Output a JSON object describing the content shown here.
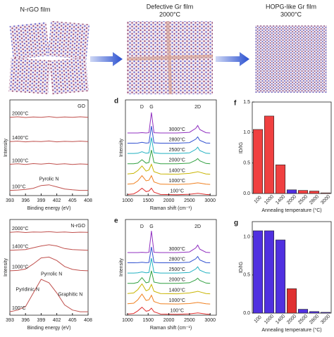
{
  "schematic": {
    "films": [
      {
        "label": "N-rGO film"
      },
      {
        "label": "Defective Gr film",
        "temperature": "2000°C"
      },
      {
        "label": "HOPG-like Gr film",
        "temperature": "3000°C"
      }
    ]
  },
  "chart_data": [
    {
      "type": "line",
      "title": "GO",
      "xlabel": "Binding energy (eV)",
      "ylabel": "Intensity",
      "x": [
        393,
        394.5,
        396,
        397.5,
        399,
        400.5,
        402,
        403.5,
        405,
        406.5,
        408
      ],
      "xlim": [
        393,
        408
      ],
      "xticks": [
        393,
        396,
        399,
        402,
        405,
        408
      ],
      "ylim": [
        0,
        5.5
      ],
      "series": [
        {
          "name": "100°C",
          "color": "#c0504d",
          "values": [
            0.3,
            0.32,
            0.35,
            0.42,
            0.58,
            0.62,
            0.5,
            0.38,
            0.33,
            0.3,
            0.3
          ]
        },
        {
          "name": "1000°C",
          "color": "#c0504d",
          "values": [
            1.8,
            1.83,
            1.79,
            1.84,
            1.81,
            1.85,
            1.8,
            1.83,
            1.79,
            1.82,
            1.8
          ]
        },
        {
          "name": "1400°C",
          "color": "#c0504d",
          "values": [
            3.1,
            3.13,
            3.09,
            3.12,
            3.1,
            3.14,
            3.09,
            3.12,
            3.1,
            3.13,
            3.1
          ]
        },
        {
          "name": "2000°C",
          "color": "#c0504d",
          "values": [
            4.5,
            4.53,
            4.49,
            4.52,
            4.5,
            4.54,
            4.49,
            4.52,
            4.5,
            4.53,
            4.5
          ]
        }
      ],
      "annotations": [
        {
          "text": "Pyrolic N",
          "x": 400.5,
          "y": 0.95,
          "color": "#2ca02c"
        }
      ]
    },
    {
      "type": "line",
      "panel": "d",
      "xlabel": "Raman shift (cm⁻¹)",
      "ylabel": "Intensity",
      "x": [
        1000,
        1150,
        1250,
        1350,
        1450,
        1520,
        1580,
        1640,
        1800,
        2200,
        2500,
        2650,
        2700,
        2750,
        2900,
        3000
      ],
      "xlim": [
        950,
        3150
      ],
      "xticks": [
        1000,
        1500,
        2000,
        2500,
        3000
      ],
      "ylim": [
        0,
        8.4
      ],
      "series": [
        {
          "name": "100°C",
          "color": "#e03030",
          "values": [
            0.1,
            0.15,
            0.35,
            0.65,
            0.35,
            0.4,
            0.65,
            0.3,
            0.1,
            0.08,
            0.12,
            0.18,
            0.2,
            0.18,
            0.1,
            0.08
          ]
        },
        {
          "name": "1000°C",
          "color": "#f08020",
          "values": [
            1.0,
            1.05,
            1.3,
            1.75,
            1.3,
            1.35,
            1.75,
            1.2,
            1.0,
            0.98,
            1.02,
            1.1,
            1.12,
            1.1,
            1.0,
            0.98
          ]
        },
        {
          "name": "1400°C",
          "color": "#c8b400",
          "values": [
            1.9,
            1.95,
            2.2,
            2.6,
            2.15,
            2.25,
            2.75,
            2.1,
            1.9,
            1.88,
            1.95,
            2.05,
            2.1,
            2.05,
            1.9,
            1.88
          ]
        },
        {
          "name": "2000°C",
          "color": "#30a040",
          "values": [
            2.8,
            2.8,
            2.85,
            3.15,
            2.85,
            2.9,
            4.0,
            2.9,
            2.8,
            2.8,
            2.85,
            3.1,
            3.25,
            3.05,
            2.82,
            2.8
          ]
        },
        {
          "name": "2500°C",
          "color": "#20b0c0",
          "values": [
            3.7,
            3.7,
            3.72,
            3.85,
            3.72,
            3.75,
            5.1,
            3.75,
            3.7,
            3.7,
            3.75,
            4.05,
            4.25,
            3.95,
            3.72,
            3.7
          ]
        },
        {
          "name": "2800°C",
          "color": "#3050d0",
          "values": [
            4.6,
            4.6,
            4.61,
            4.68,
            4.61,
            4.63,
            6.1,
            4.63,
            4.6,
            4.6,
            4.65,
            4.95,
            5.15,
            4.85,
            4.62,
            4.6
          ]
        },
        {
          "name": "3000°C",
          "color": "#9030c0",
          "values": [
            5.5,
            5.5,
            5.5,
            5.53,
            5.5,
            5.52,
            7.3,
            5.52,
            5.5,
            5.5,
            5.55,
            5.9,
            6.15,
            5.8,
            5.52,
            5.5
          ]
        }
      ],
      "annotations": [
        {
          "text": "D",
          "x": 1350
        },
        {
          "text": "G",
          "x": 1580
        },
        {
          "text": "2D",
          "x": 2700
        }
      ]
    },
    {
      "type": "bar",
      "panel": "f",
      "xlabel": "Annealing temperature (°C)",
      "ylabel": "ID/IG",
      "categories": [
        "100",
        "1000",
        "1400",
        "2000",
        "2500",
        "2800",
        "3000"
      ],
      "values": [
        1.05,
        1.27,
        0.47,
        0.06,
        0.05,
        0.04,
        0.01
      ],
      "colors": [
        "#f04040",
        "#f04040",
        "#f04040",
        "#5030e0",
        "#f04040",
        "#f04040",
        "#f04040"
      ],
      "ylim": [
        0,
        1.5
      ],
      "yticks": [
        {
          "value": 0,
          "label": "0.0"
        },
        0.5,
        {
          "value": 1,
          "label": "1.0"
        },
        1.5
      ]
    },
    {
      "type": "line",
      "title": "N-rGO",
      "xlabel": "Binding energy (eV)",
      "ylabel": "Intensity",
      "x": [
        393,
        394.5,
        396,
        397.5,
        399,
        400.5,
        402,
        403.5,
        405,
        406.5,
        408
      ],
      "xlim": [
        393,
        408
      ],
      "xticks": [
        393,
        396,
        399,
        402,
        405,
        408
      ],
      "ylim": [
        0,
        5.6
      ],
      "series": [
        {
          "name": "100°C",
          "color": "#c0504d",
          "values": [
            0.2,
            0.3,
            0.5,
            1.3,
            2.1,
            1.9,
            1.3,
            0.6,
            0.3,
            0.2,
            0.2
          ]
        },
        {
          "name": "1000°C",
          "color": "#c0504d",
          "values": [
            2.6,
            2.62,
            2.7,
            3.0,
            3.35,
            3.4,
            3.2,
            2.85,
            2.68,
            2.62,
            2.6
          ]
        },
        {
          "name": "1400°C",
          "color": "#c0504d",
          "values": [
            3.8,
            3.82,
            3.84,
            3.95,
            4.05,
            4.12,
            4.05,
            3.9,
            3.84,
            3.82,
            3.8
          ]
        },
        {
          "name": "2000°C",
          "color": "#c0504d",
          "values": [
            4.85,
            4.88,
            4.84,
            4.87,
            4.86,
            4.89,
            4.85,
            4.87,
            4.84,
            4.86,
            4.85
          ]
        }
      ],
      "annotations": [
        {
          "text": "Pyridinic N",
          "x": 396.4,
          "y": 1.5,
          "color": "#2070d0"
        },
        {
          "text": "Pyrrolic N",
          "x": 401,
          "y": 2.4,
          "color": "#2ca02c"
        },
        {
          "text": "Graphitic N",
          "x": 404.6,
          "y": 1.2,
          "color": "#9030c0"
        }
      ]
    },
    {
      "type": "line",
      "panel": "e",
      "xlabel": "Raman shift (cm⁻¹)",
      "ylabel": "Intensity",
      "x": [
        1000,
        1150,
        1250,
        1350,
        1450,
        1520,
        1580,
        1640,
        1800,
        2200,
        2500,
        2650,
        2700,
        2750,
        2900,
        3000
      ],
      "xlim": [
        950,
        3150
      ],
      "xticks": [
        1000,
        1500,
        2000,
        2500,
        3000
      ],
      "ylim": [
        0,
        8.4
      ],
      "series": [
        {
          "name": "100°C",
          "color": "#e03030",
          "values": [
            0.1,
            0.15,
            0.38,
            0.7,
            0.35,
            0.4,
            0.62,
            0.3,
            0.1,
            0.08,
            0.12,
            0.18,
            0.2,
            0.18,
            0.1,
            0.08
          ]
        },
        {
          "name": "1000°C",
          "color": "#f08020",
          "values": [
            1.0,
            1.05,
            1.35,
            1.85,
            1.3,
            1.35,
            1.75,
            1.2,
            1.0,
            0.98,
            1.02,
            1.1,
            1.12,
            1.1,
            1.0,
            0.98
          ]
        },
        {
          "name": "1400°C",
          "color": "#c8b400",
          "values": [
            1.9,
            1.95,
            2.25,
            2.75,
            2.15,
            2.25,
            2.7,
            2.1,
            1.9,
            1.88,
            1.95,
            2.05,
            2.1,
            2.05,
            1.9,
            1.88
          ]
        },
        {
          "name": "2000°C",
          "color": "#30a040",
          "values": [
            2.8,
            2.8,
            2.88,
            3.3,
            2.85,
            2.9,
            3.9,
            2.9,
            2.8,
            2.8,
            2.85,
            3.1,
            3.25,
            3.05,
            2.82,
            2.8
          ]
        },
        {
          "name": "2500°C",
          "color": "#20b0c0",
          "values": [
            3.7,
            3.7,
            3.72,
            3.8,
            3.72,
            3.75,
            5.0,
            3.75,
            3.7,
            3.7,
            3.75,
            4.05,
            4.25,
            3.95,
            3.72,
            3.7
          ]
        },
        {
          "name": "2800°C",
          "color": "#3050d0",
          "values": [
            4.6,
            4.6,
            4.61,
            4.65,
            4.61,
            4.63,
            6.0,
            4.63,
            4.6,
            4.6,
            4.65,
            4.95,
            5.15,
            4.85,
            4.62,
            4.6
          ]
        },
        {
          "name": "3000°C",
          "color": "#9030c0",
          "values": [
            5.5,
            5.5,
            5.5,
            5.52,
            5.5,
            5.52,
            7.4,
            5.52,
            5.5,
            5.5,
            5.55,
            5.9,
            6.15,
            5.8,
            5.52,
            5.5
          ]
        }
      ],
      "annotations": [
        {
          "text": "D",
          "x": 1350
        },
        {
          "text": "G",
          "x": 1580
        },
        {
          "text": "2D",
          "x": 2700
        }
      ]
    },
    {
      "type": "bar",
      "panel": "g",
      "xlabel": "Annealing temperature (°C)",
      "ylabel": "ID/IG",
      "categories": [
        "100",
        "1000",
        "1400",
        "2000",
        "2500",
        "2800",
        "3000"
      ],
      "values": [
        1.08,
        1.08,
        0.96,
        0.32,
        0.05,
        0.02,
        0.01
      ],
      "colors": [
        "#5030e0",
        "#5030e0",
        "#5030e0",
        "#e03030",
        "#5030e0",
        "#5030e0",
        "#5030e0"
      ],
      "ylim": [
        0,
        1.2
      ],
      "yticks": [
        {
          "value": 0,
          "label": "0.0"
        },
        0.5,
        {
          "value": 1,
          "label": "1.0"
        }
      ]
    }
  ]
}
